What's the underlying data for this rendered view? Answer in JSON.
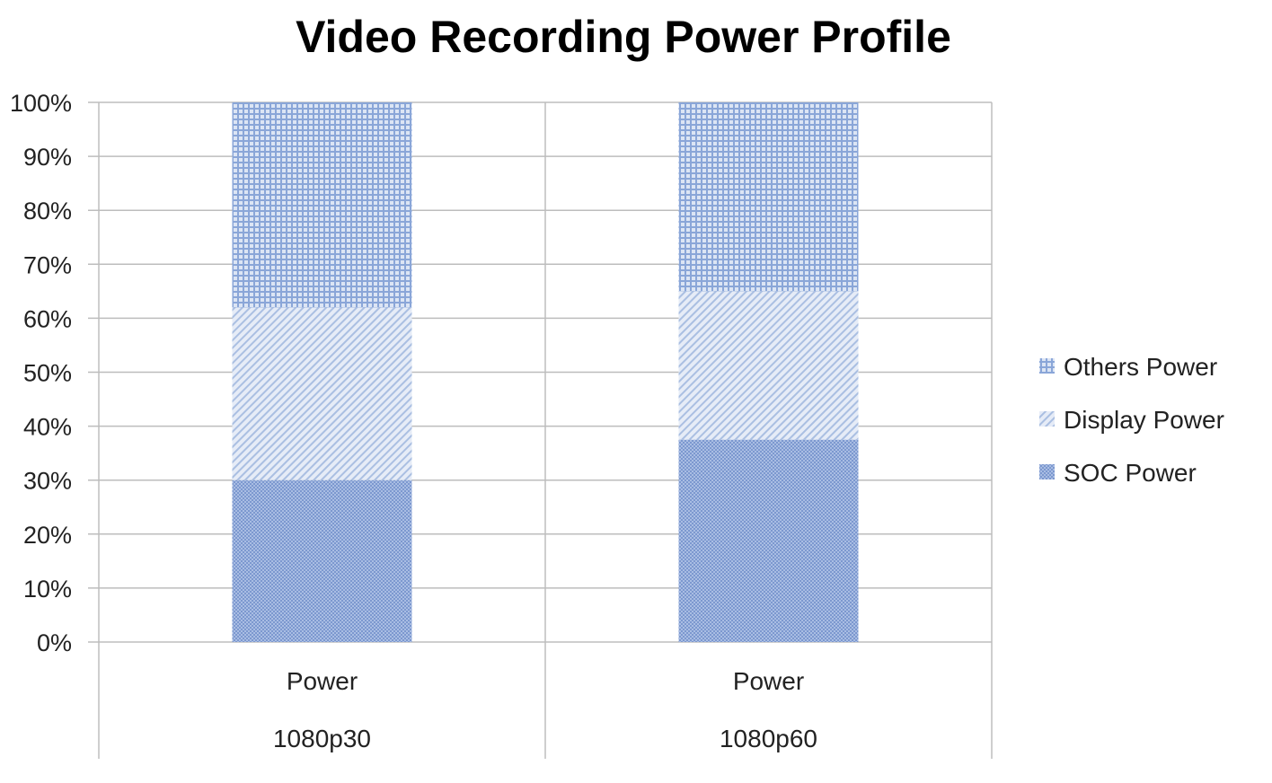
{
  "chart_data": {
    "type": "bar",
    "stacked": true,
    "title": "Video Recording Power Profile",
    "xlabel": "",
    "ylabel": "",
    "ylim": [
      0,
      100
    ],
    "y_ticks": [
      "0%",
      "10%",
      "20%",
      "30%",
      "40%",
      "50%",
      "60%",
      "70%",
      "80%",
      "90%",
      "100%"
    ],
    "grid": true,
    "legend_position": "right",
    "categories": [
      {
        "label": "Power",
        "group": "1080p30"
      },
      {
        "label": "Power",
        "group": "1080p60"
      }
    ],
    "series": [
      {
        "name": "SOC Power",
        "values": [
          30,
          37.5
        ],
        "color": "#8fa8d6",
        "pattern": "fine-dots"
      },
      {
        "name": "Display Power",
        "values": [
          32,
          27.5
        ],
        "color": "#c8d6ee",
        "pattern": "diagonal"
      },
      {
        "name": "Others Power",
        "values": [
          38,
          35
        ],
        "color": "#9fb6df",
        "pattern": "grid"
      }
    ]
  }
}
